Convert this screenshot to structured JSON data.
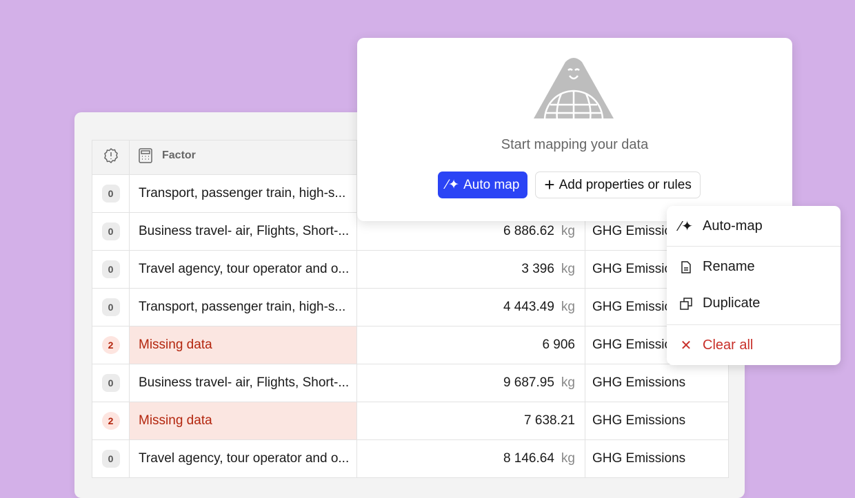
{
  "table": {
    "header": {
      "factor": "Factor"
    },
    "rows": [
      {
        "issues": "0",
        "factor": "Transport, passenger train, high-s...",
        "value": "",
        "unit": "",
        "category": ""
      },
      {
        "issues": "0",
        "factor": "Business travel- air, Flights, Short-...",
        "value": "6 886.62",
        "unit": "kg",
        "category": "GHG Emissio"
      },
      {
        "issues": "0",
        "factor": "Travel agency, tour operator and o...",
        "value": "3 396",
        "unit": "kg",
        "category": "GHG Emissio"
      },
      {
        "issues": "0",
        "factor": "Transport, passenger train, high-s...",
        "value": "4 443.49",
        "unit": "kg",
        "category": "GHG Emissio"
      },
      {
        "issues": "2",
        "factor": "Missing data",
        "value": "6 906",
        "unit": "",
        "category": "GHG Emissio",
        "missing": true
      },
      {
        "issues": "0",
        "factor": "Business travel- air, Flights, Short-...",
        "value": "9 687.95",
        "unit": "kg",
        "category": "GHG Emissions"
      },
      {
        "issues": "2",
        "factor": "Missing data",
        "value": "7 638.21",
        "unit": "",
        "category": "GHG Emissions",
        "missing": true
      },
      {
        "issues": "0",
        "factor": "Travel agency, tour operator and o...",
        "value": "8 146.64",
        "unit": "kg",
        "category": "GHG Emissions"
      }
    ]
  },
  "modal": {
    "message": "Start mapping your data",
    "auto_map": "Auto map",
    "add": "Add properties or rules"
  },
  "menu": {
    "auto_map": "Auto-map",
    "rename": "Rename",
    "duplicate": "Duplicate",
    "clear_all": "Clear all"
  },
  "colors": {
    "background": "#d3b0e8",
    "primary": "#2b44f5",
    "error": "#b3260e"
  }
}
